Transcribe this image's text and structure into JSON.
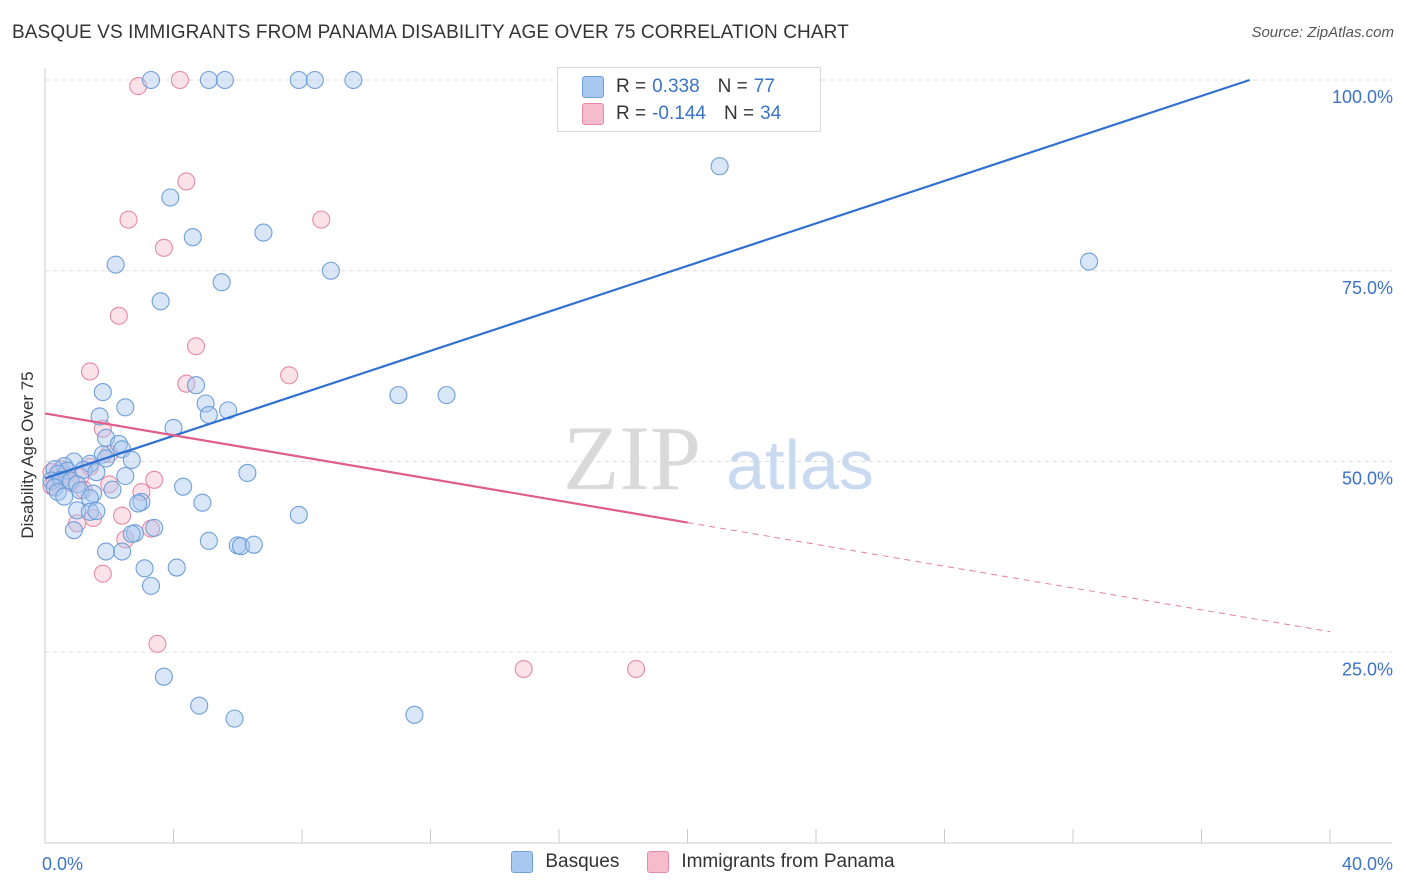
{
  "header": {
    "title": "BASQUE VS IMMIGRANTS FROM PANAMA DISABILITY AGE OVER 75 CORRELATION CHART",
    "source": "Source: ZipAtlas.com"
  },
  "watermark": {
    "zip": "ZIP",
    "atlas": "atlas"
  },
  "legend_top": {
    "rows": [
      {
        "r_key": "R =",
        "r_value": "0.338",
        "n_key": "N =",
        "n_value": "77"
      },
      {
        "r_key": "R =",
        "r_value": "-0.144",
        "n_key": "N =",
        "n_value": "34"
      }
    ]
  },
  "legend_bottom": [
    "Basques",
    "Immigrants from Panama"
  ],
  "colors": {
    "blue_fill": "#a9c8f0",
    "blue_stroke": "#6f9fd8",
    "blue_line": "#3070d0",
    "pink_fill": "#f6bccd",
    "pink_stroke": "#e68aa6",
    "pink_line": "#e05c8a",
    "tick_text": "#3b73c9",
    "grid": "#dddddd"
  },
  "chart_data": {
    "type": "scatter",
    "title": "BASQUE VS IMMIGRANTS FROM PANAMA DISABILITY AGE OVER 75 CORRELATION CHART",
    "xlabel": "",
    "ylabel": "Disability Age Over 75",
    "xlim": [
      0,
      40
    ],
    "ylim": [
      0,
      105
    ],
    "x_tick_labels": [
      "0.0%",
      "40.0%"
    ],
    "y_ticks": [
      25,
      50,
      75,
      100
    ],
    "y_tick_labels": [
      "25.0%",
      "50.0%",
      "75.0%",
      "100.0%"
    ],
    "grid": true,
    "legend_position": "top-center",
    "series": [
      {
        "name": "Basques",
        "r": 0.338,
        "n": 77,
        "trend": {
          "x0": 0,
          "y0": 47.8,
          "x1": 37.5,
          "y1": 100.0,
          "dashed_to": null
        },
        "points": [
          [
            3.3,
            100
          ],
          [
            5.1,
            100
          ],
          [
            5.6,
            100
          ],
          [
            7.9,
            100
          ],
          [
            8.4,
            100
          ],
          [
            9.6,
            100
          ],
          [
            21.0,
            88.7
          ],
          [
            3.9,
            84.6
          ],
          [
            4.6,
            79.4
          ],
          [
            6.8,
            80.0
          ],
          [
            2.2,
            75.8
          ],
          [
            8.9,
            75.0
          ],
          [
            5.5,
            73.5
          ],
          [
            3.6,
            71.0
          ],
          [
            32.5,
            76.2
          ],
          [
            1.8,
            59.1
          ],
          [
            4.7,
            60.0
          ],
          [
            11.0,
            58.7
          ],
          [
            12.5,
            58.7
          ],
          [
            2.5,
            57.1
          ],
          [
            5.0,
            57.6
          ],
          [
            5.7,
            56.7
          ],
          [
            5.1,
            56.1
          ],
          [
            1.7,
            55.9
          ],
          [
            4.0,
            54.4
          ],
          [
            1.9,
            53.1
          ],
          [
            2.3,
            52.3
          ],
          [
            2.4,
            51.6
          ],
          [
            1.8,
            50.9
          ],
          [
            1.9,
            50.4
          ],
          [
            2.7,
            50.2
          ],
          [
            0.9,
            50.0
          ],
          [
            1.4,
            49.7
          ],
          [
            0.6,
            49.4
          ],
          [
            0.3,
            49.0
          ],
          [
            0.7,
            48.8
          ],
          [
            1.2,
            48.9
          ],
          [
            1.6,
            48.6
          ],
          [
            0.4,
            48.4
          ],
          [
            2.5,
            48.1
          ],
          [
            6.3,
            48.5
          ],
          [
            0.2,
            47.5
          ],
          [
            0.5,
            47.6
          ],
          [
            0.8,
            47.5
          ],
          [
            1.0,
            47.0
          ],
          [
            0.3,
            46.6
          ],
          [
            0.4,
            46.0
          ],
          [
            1.1,
            46.2
          ],
          [
            2.1,
            46.3
          ],
          [
            1.5,
            45.8
          ],
          [
            4.3,
            46.7
          ],
          [
            0.6,
            45.4
          ],
          [
            1.4,
            45.2
          ],
          [
            3.0,
            44.7
          ],
          [
            2.9,
            44.5
          ],
          [
            4.9,
            44.6
          ],
          [
            1.0,
            43.6
          ],
          [
            1.4,
            43.4
          ],
          [
            1.6,
            43.5
          ],
          [
            7.9,
            43.0
          ],
          [
            3.4,
            41.3
          ],
          [
            2.8,
            40.6
          ],
          [
            2.7,
            40.5
          ],
          [
            5.1,
            39.6
          ],
          [
            6.0,
            39.0
          ],
          [
            6.1,
            38.9
          ],
          [
            6.5,
            39.1
          ],
          [
            1.9,
            38.2
          ],
          [
            2.4,
            38.2
          ],
          [
            3.1,
            36.0
          ],
          [
            4.1,
            36.1
          ],
          [
            3.3,
            33.7
          ],
          [
            3.7,
            21.8
          ],
          [
            4.8,
            18.0
          ],
          [
            5.9,
            16.3
          ],
          [
            11.5,
            16.8
          ],
          [
            0.9,
            41.0
          ]
        ]
      },
      {
        "name": "Immigrants from Panama",
        "r": -0.144,
        "n": 34,
        "trend": {
          "x0": 0,
          "y0": 56.3,
          "x1": 20.0,
          "y1": 42.0,
          "dashed_to": [
            40.0,
            27.7
          ]
        },
        "points": [
          [
            2.9,
            99.2
          ],
          [
            4.2,
            100
          ],
          [
            4.4,
            86.7
          ],
          [
            2.6,
            81.7
          ],
          [
            8.6,
            81.7
          ],
          [
            3.7,
            78.0
          ],
          [
            2.3,
            69.1
          ],
          [
            4.7,
            65.1
          ],
          [
            1.4,
            61.8
          ],
          [
            7.6,
            61.3
          ],
          [
            4.4,
            60.2
          ],
          [
            1.8,
            54.3
          ],
          [
            2.0,
            51.0
          ],
          [
            1.4,
            49.3
          ],
          [
            0.5,
            49.0
          ],
          [
            0.2,
            48.6
          ],
          [
            0.6,
            48.3
          ],
          [
            1.1,
            48.0
          ],
          [
            0.3,
            47.3
          ],
          [
            3.4,
            47.6
          ],
          [
            0.8,
            47.2
          ],
          [
            0.2,
            46.8
          ],
          [
            1.2,
            46.3
          ],
          [
            3.0,
            46.0
          ],
          [
            2.0,
            47.0
          ],
          [
            2.4,
            42.9
          ],
          [
            1.5,
            42.6
          ],
          [
            1.0,
            41.9
          ],
          [
            3.3,
            41.2
          ],
          [
            2.5,
            39.8
          ],
          [
            1.8,
            35.3
          ],
          [
            3.5,
            26.1
          ],
          [
            14.9,
            22.8
          ],
          [
            18.4,
            22.8
          ]
        ]
      }
    ]
  }
}
